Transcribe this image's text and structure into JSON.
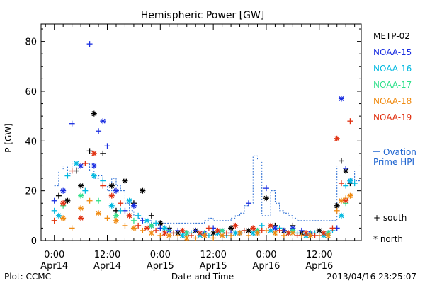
{
  "chart_data": {
    "type": "scatter",
    "title": "Hemispheric Power [GW]",
    "xlabel": "Date and Time",
    "ylabel": "P [GW]",
    "x_unit": "hours since 2013-04-14 00:00 UT",
    "xlim": [
      -3,
      69.5
    ],
    "ylim": [
      0,
      87
    ],
    "yticks": [
      0,
      20,
      40,
      60,
      80
    ],
    "xticks": [
      {
        "x": 0,
        "time": "0:00",
        "date": "Apr14"
      },
      {
        "x": 12,
        "time": "12:00",
        "date": "Apr14"
      },
      {
        "x": 24,
        "time": "0:00",
        "date": "Apr15"
      },
      {
        "x": 36,
        "time": "12:00",
        "date": "Apr15"
      },
      {
        "x": 48,
        "time": "0:00",
        "date": "Apr16"
      },
      {
        "x": 60,
        "time": "12:00",
        "date": "Apr16"
      }
    ],
    "legend_position": "right",
    "series": [
      {
        "name": "METP-02",
        "color": "#000000",
        "marker": "mixed",
        "points": [
          [
            1,
            18
          ],
          [
            3,
            16
          ],
          [
            5,
            28
          ],
          [
            6,
            22
          ],
          [
            8,
            36
          ],
          [
            9,
            51
          ],
          [
            11,
            35
          ],
          [
            13,
            22
          ],
          [
            14,
            12
          ],
          [
            16,
            24
          ],
          [
            18,
            15
          ],
          [
            20,
            20
          ],
          [
            22,
            10
          ],
          [
            24,
            7
          ],
          [
            26,
            5
          ],
          [
            28,
            3
          ],
          [
            30,
            3
          ],
          [
            32,
            4
          ],
          [
            34,
            2
          ],
          [
            36,
            3
          ],
          [
            38,
            2
          ],
          [
            40,
            5
          ],
          [
            42,
            3
          ],
          [
            44,
            4
          ],
          [
            46,
            3
          ],
          [
            48,
            17
          ],
          [
            50,
            6
          ],
          [
            52,
            4
          ],
          [
            54,
            6
          ],
          [
            56,
            3
          ],
          [
            58,
            2
          ],
          [
            60,
            4
          ],
          [
            62,
            3
          ],
          [
            64,
            14
          ],
          [
            65,
            32
          ],
          [
            66,
            28
          ],
          [
            67,
            23
          ]
        ]
      },
      {
        "name": "NOAA-15",
        "color": "#1a2ee0",
        "marker": "mixed",
        "points": [
          [
            0,
            16
          ],
          [
            2,
            20
          ],
          [
            4,
            47
          ],
          [
            6,
            30
          ],
          [
            8,
            79
          ],
          [
            9,
            30
          ],
          [
            10,
            44
          ],
          [
            11,
            48
          ],
          [
            12,
            38
          ],
          [
            14,
            20
          ],
          [
            16,
            12
          ],
          [
            18,
            14
          ],
          [
            20,
            8
          ],
          [
            22,
            6
          ],
          [
            24,
            5
          ],
          [
            26,
            4
          ],
          [
            28,
            4
          ],
          [
            30,
            3
          ],
          [
            32,
            4
          ],
          [
            34,
            3
          ],
          [
            36,
            5
          ],
          [
            38,
            4
          ],
          [
            40,
            3
          ],
          [
            42,
            3
          ],
          [
            44,
            15
          ],
          [
            46,
            4
          ],
          [
            48,
            21
          ],
          [
            50,
            5
          ],
          [
            52,
            4
          ],
          [
            54,
            5
          ],
          [
            56,
            4
          ],
          [
            58,
            3
          ],
          [
            60,
            2
          ],
          [
            62,
            3
          ],
          [
            64,
            5
          ],
          [
            65,
            57
          ],
          [
            66,
            29
          ],
          [
            67,
            24
          ]
        ]
      },
      {
        "name": "NOAA-16",
        "color": "#00b8e0",
        "marker": "mixed",
        "points": [
          [
            0,
            12
          ],
          [
            1,
            10
          ],
          [
            3,
            26
          ],
          [
            5,
            31
          ],
          [
            7,
            20
          ],
          [
            9,
            26
          ],
          [
            11,
            24
          ],
          [
            13,
            14
          ],
          [
            15,
            12
          ],
          [
            17,
            16
          ],
          [
            19,
            10
          ],
          [
            21,
            8
          ],
          [
            23,
            7
          ],
          [
            25,
            5
          ],
          [
            27,
            3
          ],
          [
            29,
            2
          ],
          [
            31,
            3
          ],
          [
            33,
            2
          ],
          [
            35,
            2
          ],
          [
            37,
            3
          ],
          [
            39,
            2
          ],
          [
            41,
            3
          ],
          [
            43,
            4
          ],
          [
            45,
            3
          ],
          [
            47,
            6
          ],
          [
            49,
            4
          ],
          [
            51,
            5
          ],
          [
            53,
            3
          ],
          [
            55,
            3
          ],
          [
            57,
            2
          ],
          [
            59,
            3
          ],
          [
            61,
            2
          ],
          [
            63,
            4
          ],
          [
            65,
            10
          ],
          [
            66,
            22
          ],
          [
            67,
            24
          ],
          [
            68,
            23
          ]
        ]
      },
      {
        "name": "NOAA-17",
        "color": "#2ee08a",
        "marker": "mixed",
        "points": [
          [
            2,
            14
          ],
          [
            6,
            18
          ],
          [
            10,
            16
          ],
          [
            14,
            10
          ],
          [
            18,
            8
          ],
          [
            22,
            6
          ],
          [
            26,
            4
          ],
          [
            30,
            3
          ],
          [
            34,
            3
          ],
          [
            38,
            4
          ],
          [
            42,
            3
          ],
          [
            46,
            4
          ],
          [
            50,
            3
          ],
          [
            54,
            4
          ],
          [
            58,
            3
          ],
          [
            62,
            3
          ],
          [
            66,
            15
          ]
        ]
      },
      {
        "name": "NOAA-18",
        "color": "#f08a10",
        "marker": "mixed",
        "points": [
          [
            0,
            8
          ],
          [
            2,
            9
          ],
          [
            4,
            5
          ],
          [
            6,
            13
          ],
          [
            8,
            16
          ],
          [
            10,
            11
          ],
          [
            12,
            9
          ],
          [
            14,
            8
          ],
          [
            16,
            6
          ],
          [
            18,
            5
          ],
          [
            20,
            4
          ],
          [
            22,
            3
          ],
          [
            24,
            2
          ],
          [
            26,
            2
          ],
          [
            28,
            2
          ],
          [
            30,
            1
          ],
          [
            32,
            1
          ],
          [
            34,
            2
          ],
          [
            36,
            1
          ],
          [
            38,
            2
          ],
          [
            40,
            2
          ],
          [
            42,
            3
          ],
          [
            44,
            2
          ],
          [
            46,
            3
          ],
          [
            48,
            4
          ],
          [
            50,
            3
          ],
          [
            52,
            2
          ],
          [
            54,
            3
          ],
          [
            56,
            2
          ],
          [
            58,
            2
          ],
          [
            60,
            2
          ],
          [
            62,
            2
          ],
          [
            64,
            12
          ],
          [
            65,
            16
          ],
          [
            66,
            17
          ],
          [
            67,
            18
          ]
        ]
      },
      {
        "name": "NOAA-19",
        "color": "#e03010",
        "marker": "mixed",
        "points": [
          [
            0,
            8
          ],
          [
            2,
            15
          ],
          [
            4,
            28
          ],
          [
            6,
            9
          ],
          [
            7,
            31
          ],
          [
            9,
            35
          ],
          [
            11,
            22
          ],
          [
            13,
            18
          ],
          [
            15,
            15
          ],
          [
            17,
            10
          ],
          [
            19,
            6
          ],
          [
            21,
            5
          ],
          [
            23,
            4
          ],
          [
            25,
            3
          ],
          [
            27,
            3
          ],
          [
            29,
            4
          ],
          [
            31,
            2
          ],
          [
            33,
            3
          ],
          [
            35,
            5
          ],
          [
            37,
            4
          ],
          [
            39,
            3
          ],
          [
            41,
            6
          ],
          [
            43,
            4
          ],
          [
            45,
            5
          ],
          [
            47,
            4
          ],
          [
            49,
            6
          ],
          [
            51,
            4
          ],
          [
            53,
            3
          ],
          [
            55,
            2
          ],
          [
            57,
            3
          ],
          [
            59,
            2
          ],
          [
            61,
            3
          ],
          [
            63,
            5
          ],
          [
            64,
            41
          ],
          [
            65,
            23
          ],
          [
            66,
            16
          ],
          [
            67,
            48
          ]
        ]
      },
      {
        "name": "Ovation Prime HPI",
        "color": "#1e64d0",
        "style": "dashed-step",
        "label_lines": [
          "Ovation",
          "Prime HPI"
        ],
        "points": [
          [
            0,
            22
          ],
          [
            1,
            28
          ],
          [
            2,
            30
          ],
          [
            3,
            27
          ],
          [
            4,
            32
          ],
          [
            5,
            29
          ],
          [
            6,
            30
          ],
          [
            7,
            31
          ],
          [
            8,
            28
          ],
          [
            9,
            25
          ],
          [
            10,
            26
          ],
          [
            11,
            22
          ],
          [
            12,
            20
          ],
          [
            13,
            25
          ],
          [
            14,
            22
          ],
          [
            15,
            20
          ],
          [
            16,
            15
          ],
          [
            17,
            12
          ],
          [
            18,
            10
          ],
          [
            19,
            9
          ],
          [
            20,
            8
          ],
          [
            22,
            7
          ],
          [
            24,
            7
          ],
          [
            28,
            7
          ],
          [
            32,
            7
          ],
          [
            34,
            8
          ],
          [
            35,
            9
          ],
          [
            36,
            8
          ],
          [
            38,
            8
          ],
          [
            40,
            9
          ],
          [
            41,
            10
          ],
          [
            42,
            11
          ],
          [
            43,
            14
          ],
          [
            44,
            15
          ],
          [
            45,
            34
          ],
          [
            46,
            32
          ],
          [
            47,
            10
          ],
          [
            48,
            10
          ],
          [
            49,
            20
          ],
          [
            50,
            15
          ],
          [
            51,
            12
          ],
          [
            52,
            11
          ],
          [
            53,
            10
          ],
          [
            54,
            9
          ],
          [
            55,
            8
          ],
          [
            56,
            8
          ],
          [
            62,
            8
          ],
          [
            63,
            8
          ],
          [
            64,
            30
          ],
          [
            66,
            28
          ],
          [
            68,
            24
          ]
        ]
      }
    ],
    "marker_legend": [
      {
        "symbol": "+",
        "label": "south"
      },
      {
        "symbol": "*",
        "label": "north"
      }
    ]
  },
  "footer": {
    "left": "Plot: CCMC",
    "center": "Date and Time",
    "right": "2013/04/16 23:25:07"
  }
}
